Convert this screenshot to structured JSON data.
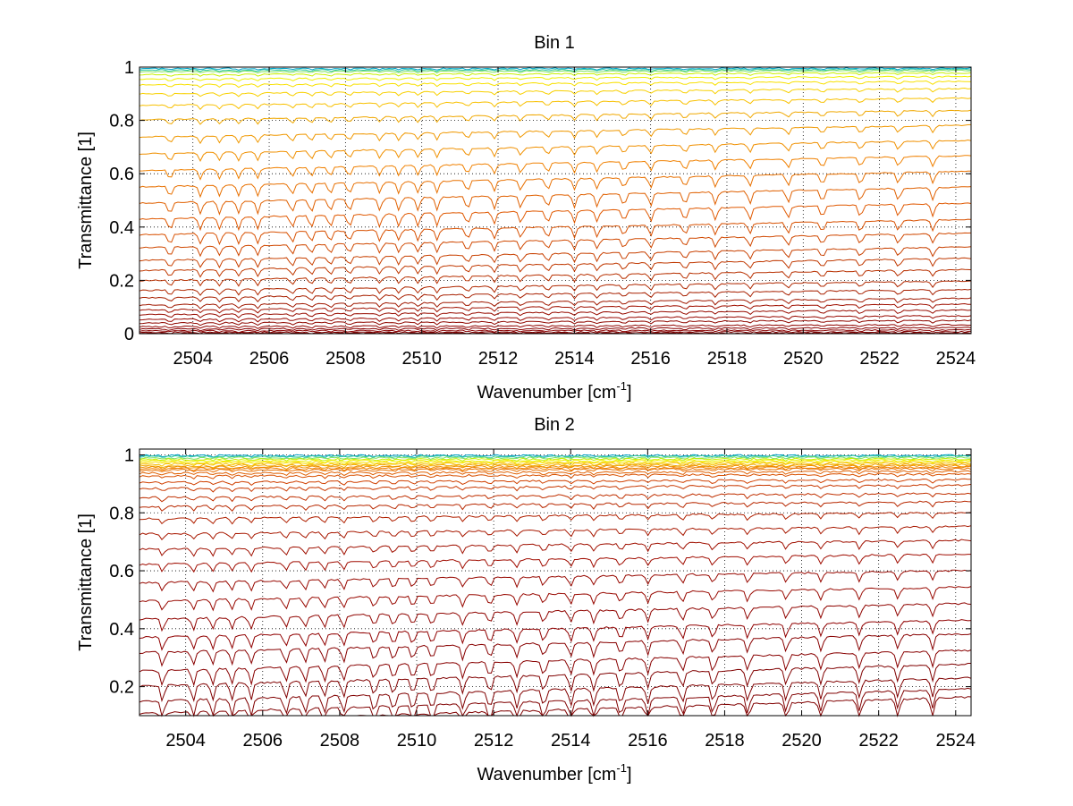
{
  "chart_data": [
    {
      "type": "line",
      "title": "Bin 1",
      "xlabel_base": "Wavenumber [cm",
      "xlabel_sup": "-1",
      "xlabel_tail": "]",
      "ylabel": "Transmittance [1]",
      "xlim": [
        2502.6,
        2524.4
      ],
      "ylim": [
        0,
        1
      ],
      "grid": true,
      "xticks": [
        2504,
        2506,
        2508,
        2510,
        2512,
        2514,
        2516,
        2518,
        2520,
        2522,
        2524
      ],
      "yticks": [
        0,
        0.2,
        0.4,
        0.6,
        0.8,
        1
      ],
      "ytick_labels": [
        "0",
        "0.2",
        "0.4",
        "0.6",
        "0.8",
        "1"
      ],
      "series_levels": [
        0.995,
        0.99,
        0.985,
        0.975,
        0.96,
        0.94,
        0.91,
        0.87,
        0.82,
        0.76,
        0.7,
        0.64,
        0.58,
        0.52,
        0.46,
        0.4,
        0.35,
        0.3,
        0.26,
        0.22,
        0.18,
        0.15,
        0.12,
        0.1,
        0.08,
        0.06,
        0.045,
        0.03,
        0.02,
        0.012,
        0.006,
        0.002
      ],
      "series_colors": [
        "#00a0c8",
        "#30c8a0",
        "#80e060",
        "#c8f000",
        "#f0f000",
        "#f8e000",
        "#f8d000",
        "#f8c000",
        "#f0a800",
        "#f09800",
        "#f09000",
        "#f08000",
        "#e87000",
        "#e06000",
        "#e05800",
        "#d85000",
        "#d04800",
        "#c84000",
        "#c03800",
        "#b83000",
        "#b02800",
        "#a82000",
        "#a01800",
        "#a01000",
        "#980c00",
        "#980800",
        "#900800",
        "#900400",
        "#880000",
        "#880000",
        "#800000",
        "#800000"
      ]
    },
    {
      "type": "line",
      "title": "Bin 2",
      "xlabel_base": "Wavenumber [cm",
      "xlabel_sup": "-1",
      "xlabel_tail": "]",
      "ylabel": "Transmittance [1]",
      "xlim": [
        2502.8,
        2524.4
      ],
      "ylim": [
        0.1,
        1.02
      ],
      "grid": true,
      "xticks": [
        2504,
        2506,
        2508,
        2510,
        2512,
        2514,
        2516,
        2518,
        2520,
        2522,
        2524
      ],
      "yticks": [
        0.2,
        0.4,
        0.6,
        0.8,
        1
      ],
      "ytick_labels": [
        "0.2",
        "0.4",
        "0.6",
        "0.8",
        "1"
      ],
      "series_levels": [
        0.998,
        0.995,
        0.99,
        0.985,
        0.98,
        0.975,
        0.97,
        0.965,
        0.96,
        0.955,
        0.95,
        0.94,
        0.93,
        0.91,
        0.89,
        0.86,
        0.83,
        0.79,
        0.74,
        0.69,
        0.64,
        0.58,
        0.52,
        0.46,
        0.4,
        0.35,
        0.29,
        0.24,
        0.19,
        0.15,
        0.12
      ],
      "series_colors": [
        "#00a0c8",
        "#30c8a0",
        "#80e060",
        "#c8f000",
        "#f0f000",
        "#f8e000",
        "#f8c000",
        "#f0a800",
        "#f09000",
        "#f08000",
        "#e87000",
        "#e06000",
        "#d85000",
        "#d04000",
        "#c83800",
        "#c03000",
        "#b82800",
        "#b02000",
        "#a81800",
        "#a01000",
        "#a00c00",
        "#980800",
        "#980800",
        "#900400",
        "#900000",
        "#880000",
        "#880000",
        "#800000",
        "#800000",
        "#800000",
        "#800000"
      ]
    }
  ]
}
